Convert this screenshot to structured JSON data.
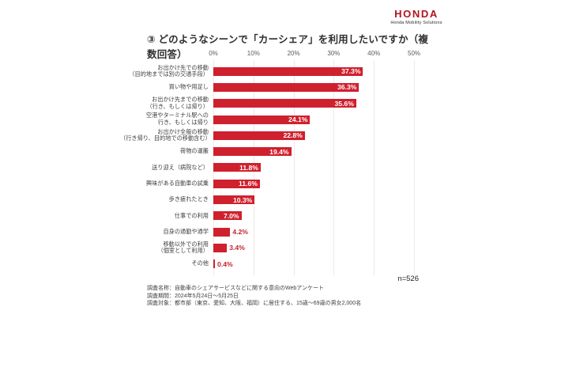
{
  "logo": {
    "brand": "HONDA",
    "subtitle": "Honda Mobility Solutions"
  },
  "title": "③ どのようなシーンで「カーシェア」を利用したいですか（複数回答）",
  "sample_size": "n=526",
  "footer": {
    "lines": [
      "調査名称：自動車のシェアサービスなどに関する意向のWebアンケート",
      "調査期間：2024年5月24日～5月25日",
      "調査対象：都市部（東京、愛知、大阪、福岡）に居住する、15歳～69歳の男女2,000名"
    ]
  },
  "chart_data": {
    "type": "bar",
    "orientation": "horizontal",
    "title": "③ どのようなシーンで「カーシェア」を利用したいですか（複数回答）",
    "xlim": [
      0,
      50
    ],
    "x_ticks": [
      "0%",
      "10%",
      "20%",
      "30%",
      "40%",
      "50%"
    ],
    "grid": true,
    "bar_color": "#cf202e",
    "categories": [
      "お出かけ先での移動\n（目的地までは別の交通手段）",
      "買い物や用足し",
      "お出かけ先までの移動\n（行き、もしくは帰り）",
      "空港やターミナル駅への\n行き、もしくは帰り",
      "お出かけ全般の移動\n（行き帰り、目的地での移動含む）",
      "荷物の運搬",
      "送り迎え（病院など）",
      "興味がある自動車の試乗",
      "歩き疲れたとき",
      "仕事での利用",
      "自身の通勤や通学",
      "移動以外での利用\n（個室として利用）",
      "その他"
    ],
    "values": [
      37.3,
      36.3,
      35.6,
      24.1,
      22.8,
      19.4,
      11.8,
      11.6,
      10.3,
      7.0,
      4.2,
      3.4,
      0.4
    ],
    "value_labels": [
      "37.3%",
      "36.3%",
      "35.6%",
      "24.1%",
      "22.8%",
      "19.4%",
      "11.8%",
      "11.6%",
      "10.3%",
      "7.0%",
      "4.2%",
      "3.4%",
      "0.4%"
    ]
  }
}
